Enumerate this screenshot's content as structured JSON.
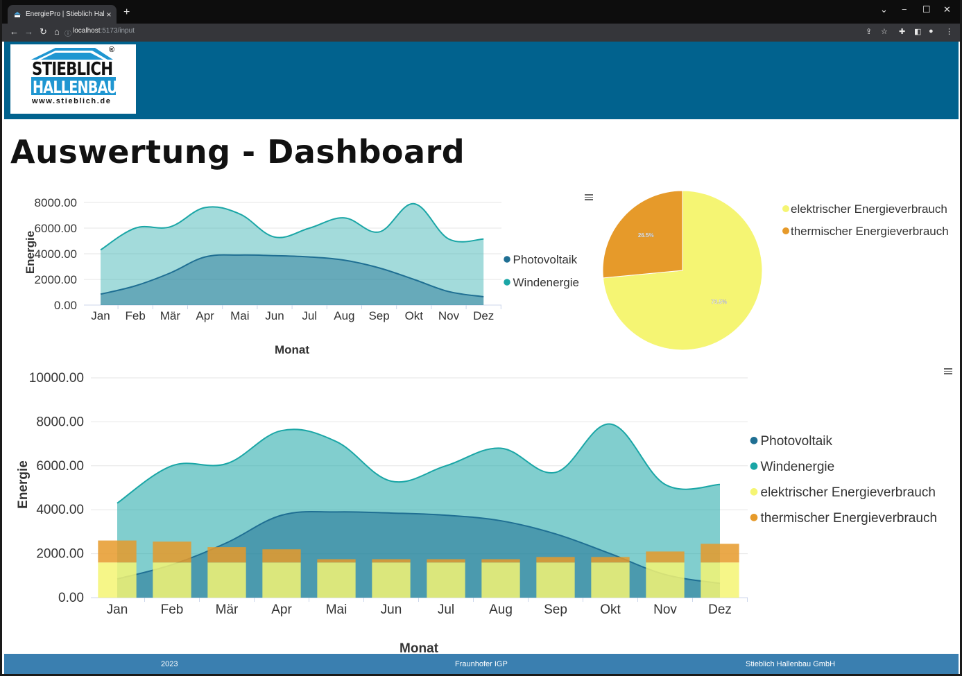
{
  "browser": {
    "tab_title": "EnergiePro | Stieblich Hallenbau",
    "tab_close": "×",
    "new_tab": "+",
    "url_host": "localhost",
    "url_path": ":5173/input"
  },
  "logo": {
    "line1": "STIEBLICH",
    "line2": "HALLENBAU",
    "website": "www.stieblich.de",
    "registered": "®"
  },
  "page": {
    "title": "Auswertung - Dashboard"
  },
  "colors": {
    "header_bg": "#01628e",
    "footer_bg": "#3a7fb0",
    "photovoltaik": "#1f6f93",
    "windenergie": "#1aa6a6",
    "elektrisch": "#f5f573",
    "thermisch": "#e69a2a"
  },
  "icons": {
    "chart_menu": "hamburger-menu-icon"
  },
  "chart_data": [
    {
      "type": "area",
      "ylabel": "Energie",
      "xlabel": "Monat",
      "ylim": [
        0,
        8000
      ],
      "yticks": [
        "0.00",
        "2000.00",
        "4000.00",
        "6000.00",
        "8000.00"
      ],
      "categories": [
        "Jan",
        "Feb",
        "Mär",
        "Apr",
        "Mai",
        "Jun",
        "Jul",
        "Aug",
        "Sep",
        "Okt",
        "Nov",
        "Dez"
      ],
      "legend_position": "right",
      "series": [
        {
          "name": "Photovoltaik",
          "values": [
            850,
            1500,
            2500,
            3750,
            3900,
            3850,
            3750,
            3500,
            2900,
            2000,
            1050,
            650
          ]
        },
        {
          "name": "Windenergie",
          "values": [
            4300,
            6000,
            6100,
            7600,
            7100,
            5300,
            6000,
            6800,
            5700,
            7900,
            5150,
            5150
          ]
        }
      ]
    },
    {
      "type": "pie",
      "legend_position": "right",
      "slices": [
        {
          "name": "elektrischer Energieverbrauch",
          "value": 73.5,
          "label": "73.5%"
        },
        {
          "name": "thermischer Energieverbrauch",
          "value": 26.5,
          "label": "26.5%"
        }
      ]
    },
    {
      "type": "area",
      "ylabel": "Energie",
      "xlabel": "Monat",
      "ylim": [
        0,
        10000
      ],
      "yticks": [
        "0.00",
        "2000.00",
        "4000.00",
        "6000.00",
        "8000.00",
        "10000.00"
      ],
      "categories": [
        "Jan",
        "Feb",
        "Mär",
        "Apr",
        "Mai",
        "Jun",
        "Jul",
        "Aug",
        "Sep",
        "Okt",
        "Nov",
        "Dez"
      ],
      "legend_position": "right",
      "series": [
        {
          "name": "Photovoltaik",
          "kind": "area",
          "values": [
            850,
            1500,
            2500,
            3750,
            3900,
            3850,
            3750,
            3500,
            2900,
            2000,
            1050,
            650
          ]
        },
        {
          "name": "Windenergie",
          "kind": "area",
          "values": [
            4300,
            6000,
            6100,
            7600,
            7100,
            5300,
            6000,
            6800,
            5700,
            7900,
            5150,
            5150
          ]
        },
        {
          "name": "elektrischer Energieverbrauch",
          "kind": "bar",
          "values": [
            1600,
            1600,
            1600,
            1600,
            1600,
            1600,
            1600,
            1600,
            1600,
            1600,
            1600,
            1600
          ]
        },
        {
          "name": "thermischer Energieverbrauch",
          "kind": "bar",
          "values": [
            1000,
            950,
            700,
            600,
            150,
            150,
            150,
            150,
            250,
            250,
            500,
            850
          ]
        }
      ]
    }
  ],
  "footer": {
    "year": "2023",
    "center": "Fraunhofer IGP",
    "right": "Stieblich Hallenbau GmbH"
  }
}
